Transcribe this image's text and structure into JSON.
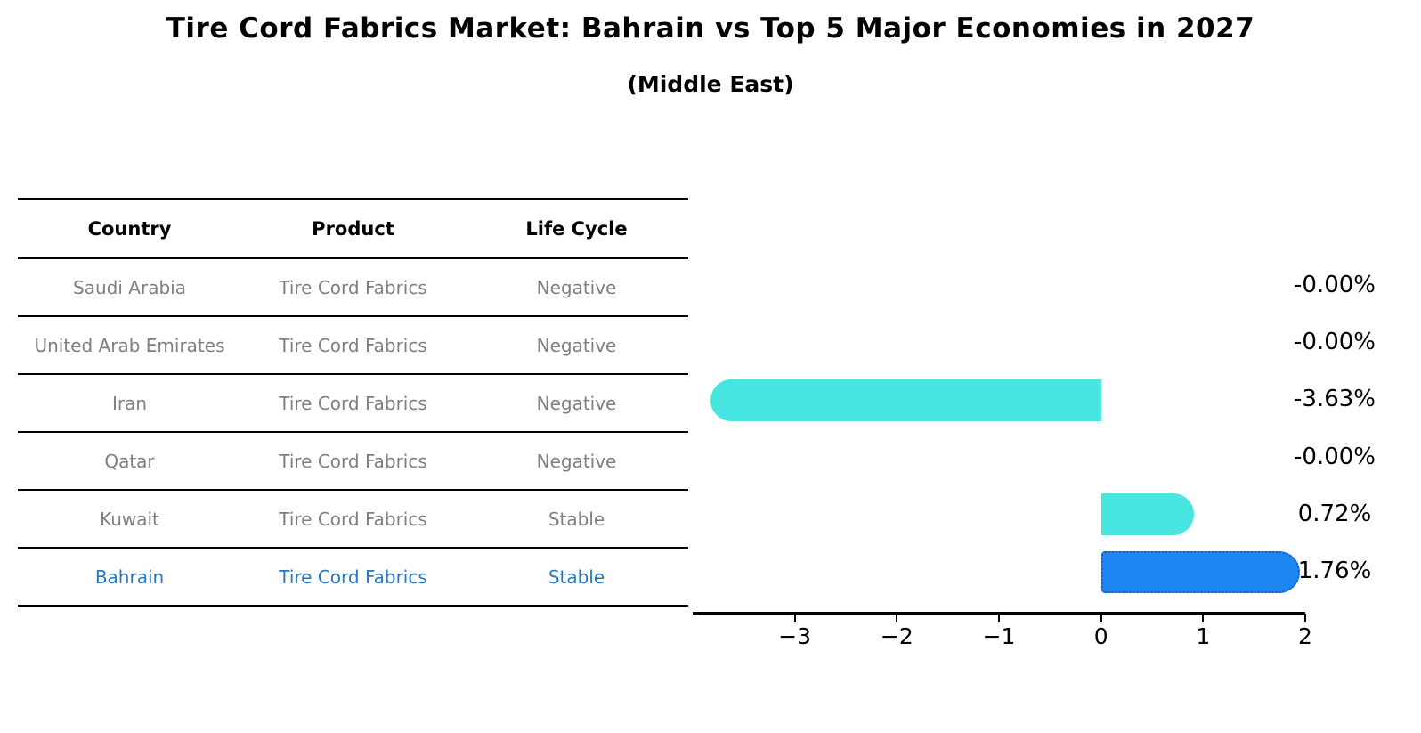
{
  "title": "Tire Cord Fabrics Market: Bahrain vs Top 5 Major Economies in 2027",
  "subtitle": "(Middle East)",
  "table": {
    "headers": [
      "Country",
      "Product",
      "Life Cycle"
    ],
    "rows": [
      {
        "country": "Saudi Arabia",
        "product": "Tire Cord Fabrics",
        "life_cycle": "Negative",
        "highlight": false
      },
      {
        "country": "United Arab Emirates",
        "product": "Tire Cord Fabrics",
        "life_cycle": "Negative",
        "highlight": false
      },
      {
        "country": "Iran",
        "product": "Tire Cord Fabrics",
        "life_cycle": "Negative",
        "highlight": false
      },
      {
        "country": "Qatar",
        "product": "Tire Cord Fabrics",
        "life_cycle": "Negative",
        "highlight": false
      },
      {
        "country": "Kuwait",
        "product": "Tire Cord Fabrics",
        "life_cycle": "Stable",
        "highlight": false
      },
      {
        "country": "Bahrain",
        "product": "Tire Cord Fabrics",
        "life_cycle": "Stable",
        "highlight": true
      }
    ]
  },
  "chart_data": {
    "type": "bar",
    "orientation": "horizontal",
    "title": "Tire Cord Fabrics Market: Bahrain vs Top 5 Major Economies in 2027",
    "subtitle": "(Middle East)",
    "categories": [
      "Saudi Arabia",
      "United Arab Emirates",
      "Iran",
      "Qatar",
      "Kuwait",
      "Bahrain"
    ],
    "values": [
      -0.0,
      -0.0,
      -3.63,
      -0.0,
      0.72,
      1.76
    ],
    "value_labels": [
      "-0.00%",
      "-0.00%",
      "-3.63%",
      "-0.00%",
      "0.72%",
      "1.76%"
    ],
    "highlight_category": "Bahrain",
    "xlim": [
      -4.0,
      2.0
    ],
    "xticks": [
      -3,
      -2,
      -1,
      0,
      1,
      2
    ],
    "xtick_labels": [
      "−3",
      "−2",
      "−1",
      "0",
      "1",
      "2"
    ],
    "grid": false,
    "legend": false,
    "colors": {
      "bar_default": "#47e6e0",
      "bar_highlight": "#1e86f0",
      "bar_highlight_border": "#0e5fd8",
      "row_text": "#7f7f7f",
      "highlight_text": "#2878c0",
      "axis": "#000000"
    }
  }
}
